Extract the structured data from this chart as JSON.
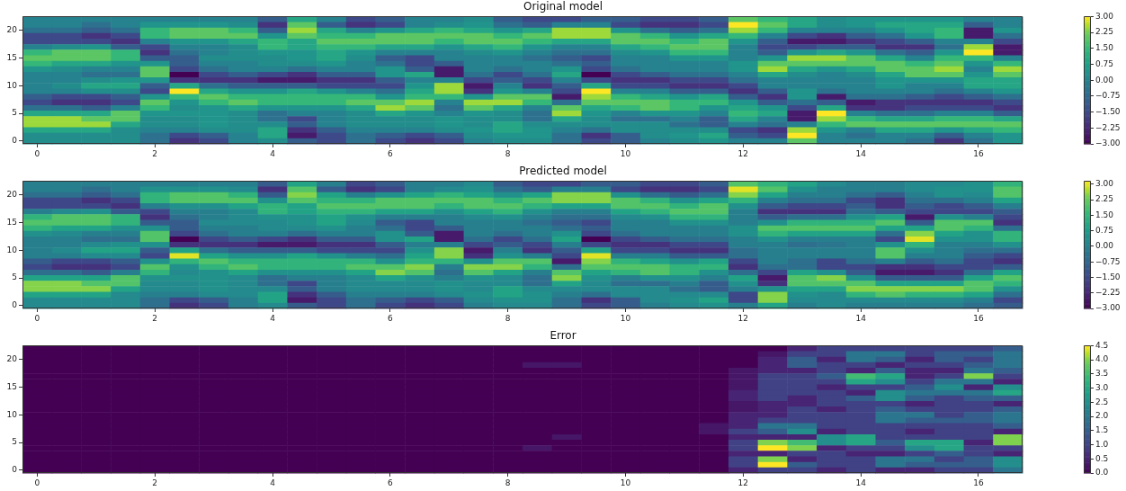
{
  "chart_data": [
    {
      "type": "heatmap",
      "title": "Original model",
      "categories": [
        "0",
        null,
        null,
        null,
        "2",
        null,
        null,
        null,
        "4",
        null,
        null,
        null,
        "6",
        null,
        null,
        null,
        "8",
        null,
        null,
        null,
        "10",
        null,
        null,
        null,
        "12",
        null,
        null,
        null,
        "14",
        null,
        null,
        null,
        "16",
        null
      ],
      "y_categories": [
        null,
        null,
        "20",
        null,
        null,
        null,
        null,
        "15",
        null,
        null,
        null,
        null,
        "10",
        null,
        null,
        null,
        null,
        "5",
        null,
        null,
        null,
        null,
        "0"
      ],
      "cells": [
        [
          0,
          0,
          0,
          0,
          0,
          0,
          0,
          0,
          -1,
          1,
          0,
          -1.5,
          -1,
          0,
          0,
          0.3,
          -1,
          -1.5,
          -1.5,
          -1,
          -1,
          -1.5,
          -1.5,
          -1,
          2,
          1.5,
          1,
          0.3,
          0.5,
          0.5,
          0.5,
          0.5,
          0,
          0
        ],
        [
          0,
          0,
          -0.5,
          0,
          0.5,
          0.5,
          0.5,
          0.3,
          -2,
          2,
          -1,
          -2,
          -1.5,
          0,
          0.3,
          0.5,
          -0.5,
          -1,
          0,
          0,
          -1.5,
          -2,
          -2,
          -1.5,
          3,
          2,
          1,
          0.3,
          0.5,
          1,
          1,
          1,
          -1,
          0
        ],
        [
          -0.5,
          -0.5,
          -1,
          -0.5,
          1.5,
          2,
          2,
          1.5,
          -1,
          2.5,
          1,
          0,
          0.5,
          1,
          1.5,
          1,
          0.5,
          1,
          2.5,
          2.5,
          0.5,
          -0.5,
          -1,
          -0.5,
          2.5,
          1.5,
          0,
          0,
          0,
          0.5,
          1,
          1.5,
          -2.5,
          0.5
        ],
        [
          -1.5,
          -1.5,
          -2,
          -1.5,
          1.5,
          2,
          2,
          2,
          0.5,
          2,
          1.5,
          1.5,
          2,
          2,
          2,
          2,
          1.5,
          2,
          2.5,
          2.5,
          2,
          1.5,
          0.5,
          1,
          1.5,
          0,
          -1.5,
          -2,
          -1,
          -0.5,
          0.5,
          1.5,
          -2.5,
          -0.5
        ],
        [
          -1.5,
          -1.5,
          -1.5,
          -2,
          0,
          0.5,
          0.5,
          1,
          1.5,
          1,
          2,
          2,
          2,
          2,
          1.5,
          2,
          2,
          1.5,
          1,
          1,
          2,
          2,
          1.5,
          2,
          0.5,
          -1,
          -2.5,
          -2.5,
          -2,
          -1.5,
          -1,
          0,
          0,
          -1.5
        ],
        [
          0,
          0.3,
          0.5,
          -1,
          -1.5,
          0,
          0,
          0.3,
          1.5,
          1,
          1.5,
          1.5,
          1,
          1,
          0.5,
          1,
          1.5,
          0.5,
          0,
          0,
          1,
          1.5,
          2,
          2,
          0,
          -1.5,
          -1.5,
          -1,
          -1,
          -2,
          -2,
          -0.5,
          2.5,
          -2.5
        ],
        [
          1.5,
          2,
          2,
          1.5,
          -2,
          -0.5,
          0,
          0.3,
          0.5,
          0.5,
          1,
          0.5,
          0,
          0,
          0,
          0.3,
          0.5,
          0,
          -0.5,
          -0.5,
          0.3,
          0.5,
          1.5,
          1.5,
          0,
          -1,
          0.5,
          1,
          0.5,
          -0.5,
          -1,
          0.5,
          3,
          -2.5
        ],
        [
          2,
          2,
          2,
          1.5,
          -1,
          -1,
          0.3,
          0.3,
          0.3,
          0.5,
          1,
          0.3,
          -1,
          -1.5,
          0,
          0,
          0,
          -0.5,
          -1,
          -1.5,
          0,
          0,
          0.5,
          0.5,
          0,
          0.5,
          2.5,
          2.5,
          2,
          1,
          0,
          1.5,
          1.5,
          0
        ],
        [
          1.5,
          1,
          1,
          0.5,
          0.5,
          -1,
          0,
          0,
          0.3,
          0.3,
          0.5,
          0,
          -0.5,
          -1.5,
          -1,
          0,
          0,
          0,
          -0.5,
          -1,
          0,
          0,
          0,
          0,
          0.5,
          2,
          2,
          2,
          2,
          2,
          1.5,
          2,
          0.5,
          1.5
        ],
        [
          0.5,
          0.3,
          0,
          0,
          2,
          -1.5,
          -0.5,
          0,
          0,
          -0.5,
          0,
          0,
          0.5,
          -1,
          -2.5,
          0,
          -0.5,
          0,
          0.5,
          -1.5,
          -0.5,
          0,
          0,
          0,
          0.5,
          2.5,
          1,
          0.5,
          1,
          2,
          2,
          2.5,
          0,
          2.5
        ],
        [
          0,
          0,
          -0.5,
          -0.5,
          2,
          -3,
          -1.5,
          -1,
          -1.5,
          -2,
          -1,
          -1,
          0.5,
          1,
          -2.5,
          -0.5,
          -1.5,
          -0.5,
          1,
          -3,
          -1.5,
          -1,
          -0.5,
          -0.5,
          0,
          1,
          0.3,
          0,
          0.3,
          1,
          2,
          2,
          0.5,
          2
        ],
        [
          0,
          0,
          0.3,
          0.5,
          0.5,
          -2,
          -2,
          -2,
          -2.5,
          -2.5,
          -2,
          -2,
          -1,
          0,
          0,
          -1.5,
          -1,
          -1.5,
          0,
          -1.5,
          -2,
          -2,
          -1.5,
          -1.5,
          -0.5,
          0,
          0,
          0,
          0,
          0.5,
          0.5,
          0.5,
          1,
          1
        ],
        [
          0,
          0.3,
          1,
          1,
          -1,
          1,
          -0.5,
          -1,
          -1,
          -1,
          -1.5,
          -1.5,
          -1.5,
          0.5,
          2.5,
          -2.5,
          0,
          -2,
          -1,
          1,
          -1.5,
          -1.5,
          -2,
          -2,
          -1.5,
          0,
          0,
          0,
          0,
          0.5,
          0,
          0,
          1,
          1
        ],
        [
          0,
          0,
          0.3,
          0.3,
          -1.5,
          3,
          1,
          0.5,
          0.5,
          1,
          0.5,
          0,
          -0.5,
          1,
          2.5,
          -2,
          0.5,
          0,
          -1.5,
          3,
          0,
          0,
          -1,
          -1,
          -2,
          -1,
          0.5,
          -0.5,
          0,
          0,
          0,
          -0.5,
          0,
          0.5
        ],
        [
          -1,
          -1.5,
          -1.5,
          -1,
          0.5,
          1.5,
          2,
          1.5,
          1.5,
          1.5,
          1.5,
          1.5,
          0.5,
          1.5,
          1.5,
          0.5,
          2,
          2,
          -2.5,
          2.5,
          1.5,
          1,
          0.5,
          1,
          -1,
          -2,
          0.5,
          -2.5,
          -0.5,
          -0.5,
          -1,
          -1.5,
          -1,
          -0.5
        ],
        [
          -1.5,
          -2,
          -2,
          -1.5,
          2,
          0.5,
          1.5,
          2,
          1.5,
          1.5,
          1.5,
          2,
          2,
          2.5,
          0,
          2.5,
          2.5,
          1.5,
          -0.5,
          2,
          2,
          2,
          1.5,
          1.5,
          0.5,
          -1,
          -0.5,
          -1,
          -2.5,
          -2,
          -2,
          -2,
          -2,
          -1.5
        ],
        [
          -0.5,
          -0.5,
          -1,
          0,
          1.5,
          0.3,
          0.5,
          1,
          0.5,
          0.5,
          0.5,
          1,
          2.5,
          2,
          -0.5,
          2,
          1,
          0,
          2,
          1,
          1.5,
          2,
          1.5,
          0.5,
          1,
          0.5,
          -1.5,
          1,
          -2,
          -2,
          -1.5,
          -1.5,
          -1.5,
          -2
        ],
        [
          1,
          1,
          1,
          2,
          0.5,
          0.5,
          0.5,
          0.3,
          -0.5,
          0,
          0,
          0.3,
          1,
          0.5,
          0,
          0.5,
          0.3,
          -0.5,
          2.5,
          0.5,
          0,
          0.5,
          0.5,
          0,
          1.5,
          1,
          -2.5,
          3,
          0,
          -0.5,
          -0.5,
          0,
          0,
          -1
        ],
        [
          2.5,
          2.5,
          2,
          2,
          0.3,
          0.3,
          0.5,
          0.3,
          -0.5,
          -1.5,
          0,
          0.3,
          0.3,
          0.3,
          0.5,
          0.3,
          0.3,
          -0.5,
          1,
          0.3,
          -0.5,
          -0.5,
          0,
          -1,
          1,
          0,
          -2.5,
          2.5,
          1.5,
          1,
          1,
          1.5,
          1.5,
          1
        ],
        [
          2.5,
          2.5,
          2.5,
          1,
          0.3,
          0.3,
          0.5,
          0.3,
          0.3,
          -1,
          0,
          0.3,
          0.3,
          0.3,
          0.5,
          0.3,
          1,
          0.3,
          0.3,
          0.3,
          0.3,
          0.3,
          -0.5,
          -1,
          0,
          -0.5,
          0,
          1.5,
          2,
          2,
          2,
          2,
          2,
          2
        ],
        [
          1,
          1,
          1,
          0.3,
          0,
          0,
          0.3,
          0.3,
          1,
          -2,
          -1,
          0,
          0,
          0,
          0.3,
          0.5,
          1,
          0.5,
          0,
          -0.5,
          0.3,
          0.3,
          0.3,
          0.3,
          -1.5,
          -2,
          2.5,
          0.5,
          0,
          1,
          1,
          0.5,
          1,
          1.5
        ],
        [
          0.3,
          0.3,
          0.3,
          0.3,
          -0.5,
          -1.5,
          -1,
          0,
          1,
          -2.5,
          -1.5,
          -0.5,
          -1,
          -1.5,
          -1,
          0.3,
          0.5,
          0.5,
          -0.5,
          -2,
          -1,
          0.3,
          0.5,
          1,
          -1,
          -1.5,
          3,
          0,
          -0.5,
          0,
          0,
          -1,
          0,
          0.5
        ],
        [
          0.3,
          0.3,
          0.3,
          0.3,
          -0.5,
          -2,
          -1.5,
          0,
          0.3,
          -1,
          -1.5,
          -0.5,
          -1.5,
          -2,
          -1.5,
          0,
          0.3,
          0.3,
          -0.5,
          -1.5,
          -1,
          0,
          0.3,
          0.5,
          0,
          0,
          2,
          0,
          0,
          0,
          -0.5,
          -2,
          -0.5,
          0.5
        ]
      ],
      "clim": [
        -3,
        3
      ],
      "cticks": [
        {
          "value": -3,
          "label": "−3.00"
        },
        {
          "value": -2.25,
          "label": "−2.25"
        },
        {
          "value": -1.5,
          "label": "−1.50"
        },
        {
          "value": -0.75,
          "label": "−0.75"
        },
        {
          "value": 0,
          "label": "0.00"
        },
        {
          "value": 0.75,
          "label": "0.75"
        },
        {
          "value": 1.5,
          "label": "1.50"
        },
        {
          "value": 2.25,
          "label": "2.25"
        },
        {
          "value": 3,
          "label": "3.00"
        }
      ]
    },
    {
      "type": "heatmap",
      "title": "Predicted model",
      "categories": [
        "0",
        null,
        null,
        null,
        "2",
        null,
        null,
        null,
        "4",
        null,
        null,
        null,
        "6",
        null,
        null,
        null,
        "8",
        null,
        null,
        null,
        "10",
        null,
        null,
        null,
        "12",
        null,
        null,
        null,
        "14",
        null,
        null,
        null,
        "16",
        null
      ],
      "y_categories": [
        null,
        null,
        "20",
        null,
        null,
        null,
        null,
        "15",
        null,
        null,
        null,
        null,
        "10",
        null,
        null,
        null,
        null,
        "5",
        null,
        null,
        null,
        null,
        "0"
      ],
      "cells": [
        [
          0,
          0,
          0,
          0,
          0,
          0,
          0,
          0,
          -1,
          1,
          0,
          -1.5,
          -1,
          0,
          0,
          0.3,
          -1,
          -1.5,
          -1.5,
          -1,
          -1,
          -1.5,
          -1.5,
          -1,
          2,
          1.5,
          1,
          0.3,
          0,
          0,
          0.3,
          0.3,
          0.5,
          1.5
        ],
        [
          0,
          0,
          -0.5,
          0,
          0.5,
          0.5,
          0.5,
          0.3,
          -2,
          2,
          -1,
          -2,
          -1.5,
          0,
          0.3,
          0.5,
          -0.5,
          -1,
          0,
          0,
          -1.5,
          -2,
          -2,
          -1.5,
          3,
          2,
          0.5,
          0,
          0,
          0,
          0.3,
          0.5,
          0.5,
          2
        ],
        [
          -0.5,
          -0.5,
          -1,
          -0.5,
          1.5,
          2,
          2,
          1.5,
          -1,
          2.5,
          1,
          0,
          0.5,
          1,
          1.5,
          1,
          0.5,
          1,
          2.5,
          2.5,
          0.5,
          -0.5,
          -1,
          -0.5,
          2.5,
          1,
          0,
          0,
          -0.5,
          -1,
          0,
          0.5,
          0.3,
          2
        ],
        [
          -1.5,
          -1.5,
          -2,
          -1.5,
          1.5,
          2,
          2,
          2,
          0.5,
          2,
          1.5,
          1.5,
          2,
          2,
          2,
          2,
          1.5,
          2,
          2.5,
          2.5,
          2,
          1.5,
          0.5,
          1,
          1.5,
          0,
          -0.5,
          -0.5,
          -1.5,
          -2,
          -0.5,
          -0.5,
          0,
          1
        ],
        [
          -1.5,
          -1.5,
          -1.5,
          -2,
          0,
          0.5,
          0.5,
          1,
          1.5,
          1,
          2,
          2,
          2,
          2,
          1.5,
          2,
          2,
          1.5,
          1,
          1,
          2,
          2,
          1.5,
          2,
          0.5,
          -1,
          -1.5,
          -1.5,
          -1,
          -2,
          -1,
          -1.5,
          -1,
          0
        ],
        [
          0,
          0.3,
          0.5,
          -1,
          -1.5,
          0,
          0,
          0.3,
          1.5,
          1,
          1.5,
          1.5,
          1,
          1,
          0.5,
          1,
          1.5,
          0.5,
          0,
          0,
          1,
          1.5,
          2,
          2,
          0,
          -2,
          -2,
          -2,
          -0.5,
          -1,
          -1.5,
          -1.5,
          -1.5,
          -1
        ],
        [
          1.5,
          2,
          2,
          1.5,
          -2,
          -0.5,
          0,
          0.3,
          0.5,
          0.5,
          1,
          0.5,
          0,
          0,
          0,
          0.3,
          0.5,
          0,
          -0.5,
          -0.5,
          0.3,
          0.5,
          1.5,
          1.5,
          0,
          -1,
          -0.5,
          -0.5,
          0.5,
          1,
          -2.5,
          0.5,
          0,
          -1.5
        ],
        [
          2,
          2,
          2,
          1.5,
          -1,
          -1,
          0.3,
          0.3,
          0.3,
          0.5,
          1,
          0.3,
          -1,
          -1.5,
          0,
          0,
          0,
          -0.5,
          -1,
          -1.5,
          0,
          0,
          0.5,
          0.5,
          0,
          0.5,
          1.5,
          1.5,
          1.5,
          2,
          -1,
          2,
          2,
          -2
        ],
        [
          1.5,
          1,
          1,
          0.5,
          0.5,
          -1,
          0,
          0,
          0.3,
          0.3,
          0.5,
          0,
          -0.5,
          -1.5,
          -1,
          0,
          0,
          0,
          -0.5,
          -1,
          0,
          0,
          0,
          0,
          0.5,
          2,
          2,
          2,
          2,
          1,
          1,
          2,
          1.5,
          -0.5
        ],
        [
          0.5,
          0.3,
          0,
          0,
          2,
          -1.5,
          -0.5,
          0,
          0,
          -0.5,
          0,
          0,
          0.5,
          -1,
          -2.5,
          0,
          -0.5,
          0,
          0.5,
          -1.5,
          -0.5,
          0,
          0,
          0,
          0.5,
          1.5,
          1,
          1,
          1,
          -0.5,
          2.5,
          1,
          0.5,
          1.5
        ],
        [
          0,
          0,
          -0.5,
          -0.5,
          2,
          -3,
          -1.5,
          -1,
          -1.5,
          -2,
          -1,
          -1,
          0.5,
          1,
          -2.5,
          -0.5,
          -1.5,
          -0.5,
          1,
          -3,
          -1.5,
          -1,
          -0.5,
          -0.5,
          0,
          0.5,
          0,
          0,
          0,
          -1.5,
          3,
          0.5,
          0.5,
          1.5
        ],
        [
          0,
          0,
          0.3,
          0.5,
          0.5,
          -2,
          -2,
          -2,
          -2.5,
          -2.5,
          -2,
          -2,
          -1,
          0,
          0,
          -1.5,
          -1,
          -1.5,
          0,
          -1.5,
          -2,
          -2,
          -1.5,
          -1.5,
          0,
          0,
          -0.5,
          -0.3,
          0,
          0.5,
          1.5,
          0,
          0,
          0.5
        ],
        [
          0,
          0.3,
          1,
          1,
          -1,
          1,
          -0.5,
          -1,
          -1,
          -1,
          -1.5,
          -1.5,
          -1.5,
          0.5,
          2.5,
          -2.5,
          0,
          -2,
          -1,
          1,
          -1.5,
          -1.5,
          -2,
          -2,
          -0.5,
          0,
          0,
          0,
          0,
          2,
          0.5,
          0,
          -0.5,
          -0.5
        ],
        [
          0,
          0,
          0.3,
          0.3,
          -1.5,
          3,
          1,
          0.5,
          0.5,
          1,
          0.5,
          0,
          -0.5,
          1,
          2.5,
          -2,
          0.5,
          0,
          -1.5,
          3,
          0,
          0,
          -1,
          -1,
          -0.5,
          0,
          0,
          0,
          0,
          2,
          0,
          0,
          -1,
          -1.5
        ],
        [
          -1,
          -1.5,
          -1.5,
          -1,
          0.5,
          1.5,
          2,
          1.5,
          1.5,
          1.5,
          1.5,
          1.5,
          0.5,
          1.5,
          1.5,
          0.5,
          2,
          2,
          -2.5,
          2.5,
          1.5,
          1,
          0.5,
          1,
          -1.5,
          0,
          -0.5,
          -1.5,
          -0.5,
          0,
          -1,
          -0.5,
          -1.5,
          -2
        ],
        [
          -1.5,
          -2,
          -2,
          -1.5,
          2,
          0.5,
          1.5,
          2,
          1.5,
          1.5,
          1.5,
          2,
          2,
          2.5,
          0,
          2.5,
          2.5,
          1.5,
          -0.5,
          2,
          2,
          2,
          1.5,
          1.5,
          -2,
          -0.5,
          -0.5,
          -1.5,
          -1.5,
          -2,
          -2,
          -1.5,
          -1.5,
          -1
        ],
        [
          -0.5,
          -0.5,
          -1,
          0,
          1.5,
          0.3,
          0.5,
          1,
          0.5,
          0.5,
          0.5,
          1,
          2.5,
          2,
          -0.5,
          2,
          1,
          0,
          2,
          1,
          1.5,
          2,
          1.5,
          0.5,
          -0.5,
          -1.5,
          1,
          0.5,
          -1,
          -2.5,
          -2.5,
          -2,
          -0.5,
          1
        ],
        [
          1,
          1,
          1,
          2,
          0.5,
          0.5,
          0.5,
          0.3,
          -0.5,
          0,
          0,
          0.3,
          1,
          0.5,
          0,
          0.5,
          0.3,
          -0.5,
          2.5,
          0.5,
          0,
          0.5,
          0.5,
          0,
          1,
          -2.5,
          2,
          2.5,
          0.5,
          -1,
          -1,
          -1,
          1,
          2
        ],
        [
          2.5,
          2.5,
          2,
          2,
          0.3,
          0.3,
          0.5,
          0.3,
          -0.5,
          -1.5,
          0,
          0.3,
          0.3,
          0.3,
          0.5,
          0.3,
          0.3,
          -0.5,
          1,
          0.3,
          -0.5,
          -0.5,
          0,
          -1,
          0.5,
          -2,
          2,
          2,
          2,
          1,
          1,
          1,
          2,
          1.5
        ],
        [
          2.5,
          2.5,
          2.5,
          1,
          0.3,
          0.3,
          0.5,
          0.3,
          0.3,
          -1,
          0,
          0.3,
          0.3,
          0.3,
          0.5,
          0.3,
          1,
          0.3,
          0.3,
          0.3,
          0.3,
          0.3,
          -0.5,
          -1,
          0,
          0.5,
          1,
          1,
          2.5,
          2.5,
          2.5,
          2.5,
          2,
          0.5
        ],
        [
          1,
          1,
          1,
          0.3,
          0,
          0,
          0.3,
          0.3,
          1,
          -2,
          -1,
          0,
          0,
          0,
          0.3,
          0.5,
          1,
          0.5,
          0,
          -0.5,
          0.3,
          0.3,
          0.3,
          0.3,
          -1.5,
          2.5,
          0.5,
          0.3,
          1.5,
          2,
          1.5,
          1.5,
          1,
          -0.5
        ],
        [
          0.3,
          0.3,
          0.3,
          0.3,
          -0.5,
          -1.5,
          -1,
          0,
          1,
          -2.5,
          -1.5,
          -0.5,
          -1,
          -1.5,
          -1,
          0.3,
          0.5,
          0.5,
          -0.5,
          -2,
          -1,
          0.3,
          0.5,
          1,
          -1.5,
          2.5,
          0.3,
          0.3,
          0.3,
          0.3,
          0.3,
          0.3,
          0,
          -1.5
        ],
        [
          0.3,
          0.3,
          0.3,
          0.3,
          -0.5,
          -2,
          -1.5,
          0,
          0.3,
          -1,
          -1.5,
          -0.5,
          -1.5,
          -2,
          -1.5,
          0,
          0.3,
          0.3,
          -0.5,
          -1.5,
          -1,
          0,
          0.3,
          0.5,
          0,
          1,
          0,
          0.3,
          0,
          0,
          0,
          0,
          -0.5,
          -1
        ]
      ],
      "clim": [
        -3,
        3.15
      ],
      "cticks": [
        {
          "value": -3,
          "label": "−3.00"
        },
        {
          "value": -2.25,
          "label": "−2.25"
        },
        {
          "value": -1.5,
          "label": "−1.50"
        },
        {
          "value": -0.75,
          "label": "−0.75"
        },
        {
          "value": 0,
          "label": "0.00"
        },
        {
          "value": 0.75,
          "label": "0.75"
        },
        {
          "value": 1.5,
          "label": "1.50"
        },
        {
          "value": 2.25,
          "label": "2.25"
        },
        {
          "value": 3,
          "label": "3.00"
        }
      ]
    },
    {
      "type": "heatmap",
      "title": "Error",
      "categories": [
        "0",
        null,
        null,
        null,
        "2",
        null,
        null,
        null,
        "4",
        null,
        null,
        null,
        "6",
        null,
        null,
        null,
        "8",
        null,
        null,
        null,
        "10",
        null,
        null,
        null,
        "12",
        null,
        null,
        null,
        "14",
        null,
        null,
        null,
        "16",
        null
      ],
      "y_categories": [
        null,
        null,
        "20",
        null,
        null,
        null,
        null,
        "15",
        null,
        null,
        null,
        null,
        "10",
        null,
        null,
        null,
        null,
        "5",
        null,
        null,
        null,
        null,
        "0"
      ],
      "cells": [
        [
          0,
          0,
          0,
          0,
          0,
          0,
          0,
          0,
          0,
          0,
          0,
          0,
          0,
          0,
          0,
          0,
          0,
          0,
          0,
          0,
          0,
          0,
          0,
          0,
          0,
          0,
          0.5,
          1,
          1,
          1,
          1,
          1,
          1,
          1.5
        ],
        [
          0,
          0,
          0,
          0,
          0,
          0,
          0,
          0,
          0,
          0,
          0,
          0,
          0,
          0,
          0,
          0,
          0,
          0,
          0,
          0,
          0,
          0,
          0,
          0,
          0,
          0.3,
          1,
          1,
          2,
          2,
          1,
          1.5,
          1.5,
          2
        ],
        [
          0,
          0,
          0,
          0,
          0,
          0,
          0,
          0,
          0,
          0,
          0,
          0,
          0,
          0,
          0,
          0,
          0,
          0,
          0,
          0,
          0,
          0,
          0,
          0,
          0,
          0.5,
          1.5,
          0.5,
          2,
          1.5,
          0.5,
          1.5,
          1,
          2
        ],
        [
          0,
          0,
          0,
          0,
          0,
          0,
          0,
          0,
          0,
          0,
          0,
          0,
          0,
          0,
          0,
          0,
          0,
          0.3,
          0.3,
          0,
          0,
          0,
          0,
          0,
          0,
          0.5,
          1.5,
          1,
          1,
          0.5,
          1,
          1,
          1.5,
          2
        ],
        [
          0,
          0,
          0,
          0,
          0,
          0,
          0,
          0,
          0,
          0,
          0,
          0,
          0,
          0,
          0,
          0,
          0,
          0,
          0,
          0,
          0,
          0,
          0,
          0,
          0.3,
          0.5,
          0.5,
          1,
          0.5,
          1.5,
          0.5,
          0.5,
          2,
          1.5
        ],
        [
          0,
          0,
          0,
          0,
          0,
          0,
          0,
          0,
          0,
          0,
          0,
          0,
          0,
          0,
          0,
          0,
          0,
          0,
          0,
          0,
          0,
          0,
          0,
          0,
          0.3,
          1,
          1,
          1.5,
          3.5,
          3,
          0.5,
          1,
          4,
          1
        ],
        [
          0,
          0,
          0,
          0,
          0,
          0,
          0,
          0,
          0,
          0,
          0,
          0,
          0,
          0,
          0,
          0,
          0,
          0,
          0,
          0,
          0,
          0,
          0,
          0,
          0.3,
          1,
          1,
          1,
          3,
          2.5,
          1,
          2,
          2,
          0.5
        ],
        [
          0,
          0,
          0,
          0,
          0,
          0,
          0,
          0,
          0,
          0,
          0,
          0,
          0,
          0,
          0,
          0,
          0,
          0,
          0,
          0,
          0,
          0,
          0,
          0,
          0.3,
          1,
          1,
          0.5,
          1,
          1,
          1.5,
          2.5,
          0.5,
          2.5
        ],
        [
          0,
          0,
          0,
          0,
          0,
          0,
          0,
          0,
          0,
          0,
          0,
          0,
          0,
          0,
          0,
          0,
          0,
          0,
          0,
          0,
          0,
          0,
          0,
          0,
          0.5,
          1,
          1,
          1,
          0.5,
          2.5,
          2,
          2,
          2,
          3
        ],
        [
          0,
          0,
          0,
          0,
          0,
          0,
          0,
          0,
          0,
          0,
          0,
          0,
          0,
          0,
          0,
          0,
          0,
          0,
          0,
          0,
          0,
          0,
          0,
          0,
          0.5,
          1,
          0.5,
          1,
          1.5,
          2.5,
          1.5,
          1,
          1.5,
          1.5
        ],
        [
          0,
          0,
          0,
          0,
          0,
          0,
          0,
          0,
          0,
          0,
          0,
          0,
          0,
          0,
          0,
          0,
          0,
          0,
          0,
          0,
          0,
          0,
          0,
          0,
          0.3,
          0.5,
          0.5,
          1,
          1,
          1,
          0.5,
          1,
          1,
          0.5
        ],
        [
          0,
          0,
          0,
          0,
          0,
          0,
          0,
          0,
          0,
          0,
          0,
          0,
          0,
          0,
          0,
          0,
          0,
          0,
          0,
          0,
          0,
          0,
          0,
          0,
          0.3,
          0.5,
          1,
          0.5,
          1,
          1.5,
          1,
          1,
          1,
          1.5
        ],
        [
          0,
          0,
          0,
          0,
          0,
          0,
          0,
          0,
          0,
          0,
          0,
          0,
          0,
          0,
          0,
          0,
          0,
          0,
          0,
          0,
          0,
          0,
          0,
          0,
          0.5,
          0.5,
          1,
          1,
          1,
          2,
          2,
          1,
          1.5,
          2
        ],
        [
          0,
          0,
          0,
          0,
          0,
          0,
          0,
          0,
          0,
          0,
          0,
          0,
          0,
          0,
          0,
          0,
          0,
          0,
          0,
          0,
          0,
          0,
          0,
          0,
          0.5,
          1,
          1,
          1,
          1,
          2,
          1.5,
          1.5,
          1.5,
          2
        ],
        [
          0,
          0,
          0,
          0,
          0,
          0,
          0,
          0,
          0,
          0,
          0,
          0,
          0,
          0,
          0,
          0,
          0,
          0,
          0,
          0,
          0,
          0,
          0,
          0.3,
          0.5,
          2,
          2,
          1,
          1,
          1,
          1,
          1,
          1,
          1.5
        ],
        [
          0,
          0,
          0,
          0,
          0,
          0,
          0,
          0,
          0,
          0,
          0,
          0,
          0,
          0,
          0,
          0,
          0,
          0,
          0,
          0,
          0,
          0,
          0,
          0.3,
          1,
          1.5,
          2.5,
          0.5,
          1,
          1,
          0.5,
          1,
          1,
          0.5
        ],
        [
          0,
          0,
          0,
          0,
          0,
          0,
          0,
          0,
          0,
          0,
          0,
          0,
          0,
          0,
          0,
          0,
          0,
          0,
          0.3,
          0,
          0,
          0,
          0,
          0,
          0.5,
          0.5,
          0.5,
          2.5,
          3,
          1,
          1,
          1,
          1,
          4
        ],
        [
          0,
          0,
          0,
          0,
          0,
          0,
          0,
          0,
          0,
          0,
          0,
          0,
          0,
          0,
          0,
          0,
          0,
          0,
          0,
          0,
          0,
          0,
          0,
          0,
          1,
          4,
          3.5,
          2.5,
          3,
          1.5,
          3,
          3,
          0.5,
          4
        ],
        [
          0,
          0,
          0,
          0,
          0,
          0,
          0,
          0,
          0,
          0,
          0,
          0,
          0,
          0,
          0,
          0,
          0,
          0.3,
          0,
          0,
          0,
          0,
          0,
          0,
          1,
          4.5,
          4,
          0.5,
          1,
          1,
          2.5,
          3,
          1,
          1
        ],
        [
          0,
          0,
          0,
          0,
          0,
          0,
          0,
          0,
          0,
          0,
          0,
          0,
          0,
          0,
          0,
          0,
          0,
          0,
          0,
          0,
          0,
          0,
          0,
          0,
          0.5,
          0.5,
          1,
          1,
          0.5,
          0.5,
          1,
          1.5,
          1,
          0.5
        ],
        [
          0,
          0,
          0,
          0,
          0,
          0,
          0,
          0,
          0,
          0,
          0,
          0,
          0,
          0,
          0,
          0,
          0,
          0,
          0,
          0,
          0,
          0,
          0,
          0,
          1,
          4,
          0.5,
          1,
          1,
          2,
          2,
          1,
          1.5,
          2.5
        ],
        [
          0,
          0,
          0,
          0,
          0,
          0,
          0,
          0,
          0,
          0,
          0,
          0,
          0,
          0,
          0,
          0,
          0,
          0,
          0,
          0,
          0,
          0,
          0,
          0,
          1,
          4.5,
          1.5,
          1,
          1,
          2,
          1.5,
          1.5,
          1.5,
          2.5
        ],
        [
          0,
          0,
          0,
          0,
          0,
          0,
          0,
          0,
          0,
          0,
          0,
          0,
          0,
          0,
          0,
          0,
          0,
          0,
          0,
          0,
          0,
          0,
          0,
          0,
          0.5,
          1,
          1,
          0.5,
          1,
          0.5,
          0.5,
          1,
          1,
          2
        ]
      ],
      "clim": [
        0,
        4.5
      ],
      "cticks": [
        {
          "value": 0,
          "label": "0.0"
        },
        {
          "value": 0.5,
          "label": "0.5"
        },
        {
          "value": 1,
          "label": "1.0"
        },
        {
          "value": 1.5,
          "label": "1.5"
        },
        {
          "value": 2,
          "label": "2.0"
        },
        {
          "value": 2.5,
          "label": "2.5"
        },
        {
          "value": 3,
          "label": "3.0"
        },
        {
          "value": 3.5,
          "label": "3.5"
        },
        {
          "value": 4,
          "label": "4.0"
        },
        {
          "value": 4.5,
          "label": "4.5"
        }
      ]
    }
  ]
}
